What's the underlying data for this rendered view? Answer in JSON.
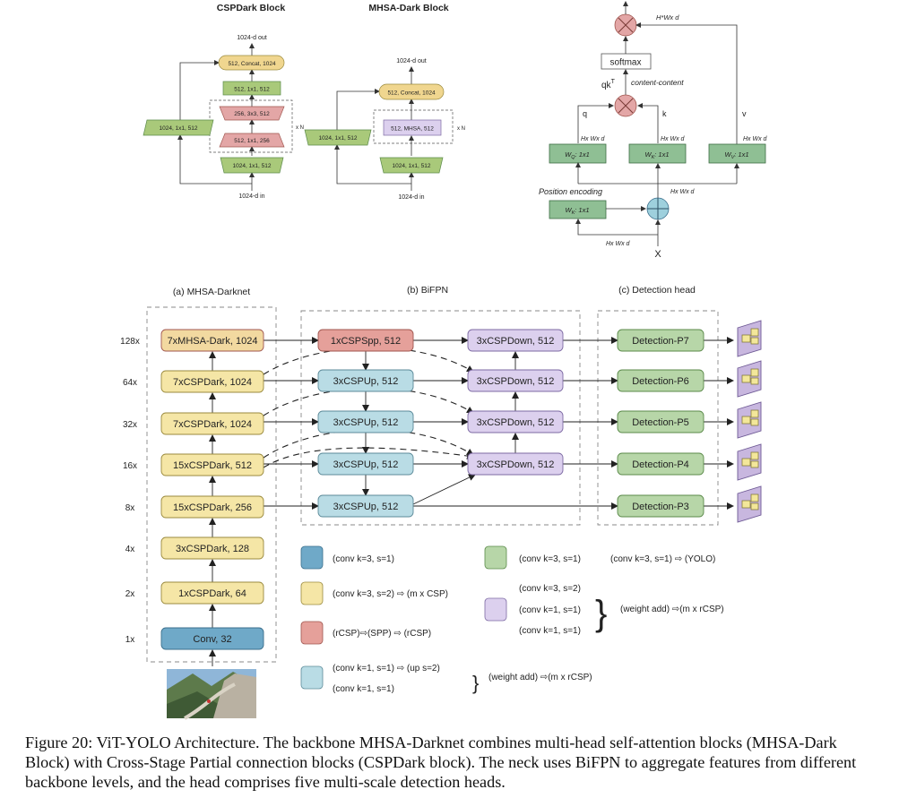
{
  "colors": {
    "yellow": "#f5e6a6",
    "yellow_stroke": "#9a8a3e",
    "blue": "#b9dce5",
    "blue_stroke": "#5c8a99",
    "darkblue": "#6fa9c8",
    "darkblue_stroke": "#3b6f8c",
    "red": "#e5a09a",
    "red_stroke": "#a0564f",
    "purple": "#dcd0ee",
    "purple_stroke": "#7d6aa3",
    "green": "#b7d6a8",
    "green_stroke": "#5b8a4a",
    "dgreen": "#8fbf94",
    "dgreen_stroke": "#3e6e45",
    "lime": "#a9c97a",
    "pink": "#e3a6a6"
  },
  "csp_block": {
    "title": "CSPDark Block",
    "out_label": "1024-d out",
    "in_label": "1024-d in",
    "concat": "512, Concat, 1024",
    "conv_512": "512, 1x1, 512",
    "conv_3x3": "256, 3x3, 512",
    "conv_256": "512, 1x1, 256",
    "conv_in": "1024, 1x1, 512",
    "side": "1024, 1x1, 512",
    "repeat": "x N"
  },
  "mhsa_block": {
    "title": "MHSA-Dark Block",
    "out_label": "1024-d out",
    "in_label": "1024-d in",
    "concat": "512, Concat, 1024",
    "mhsa": "512, MHSA, 512",
    "conv_in": "1024, 1x1, 512",
    "side": "1024, 1x1, 512",
    "repeat": "x N"
  },
  "attention": {
    "top_dim": "H*Wx d",
    "softmax": "softmax",
    "qkt": "qk",
    "qkt_sup": "T",
    "content": "content-content",
    "q": "q",
    "k": "k",
    "v": "v",
    "dim_q": "Hx Wx d",
    "dim_k": "Hx Wx d",
    "dim_v": "Hx Wx d",
    "wq": "W",
    "wq_sub": "Q",
    "wq_tail": ": 1x1",
    "wk": "W",
    "wk_sub": "K",
    "wk_tail": ": 1x1",
    "wv": "W",
    "wv_sub": "V",
    "wv_tail": ": 1x1",
    "pos": "Position encoding",
    "dim_pos": "Hx Wx d",
    "wk2": "W",
    "wk2_sub": "K",
    "wk2_tail": ": 1x1",
    "dim_x": "Hx Wx d",
    "x": "X"
  },
  "sections": {
    "darknet": "(a) MHSA-Darknet",
    "bifpn": "(b) BiFPN",
    "head": "(c) Detection head"
  },
  "scales": [
    "128x",
    "64x",
    "32x",
    "16x",
    "8x",
    "4x",
    "2x",
    "1x"
  ],
  "backbone": [
    "7xMHSA-Dark, 1024",
    "7xCSPDark, 1024",
    "7xCSPDark, 1024",
    "15xCSPDark, 512",
    "15xCSPDark, 256",
    "3xCSPDark, 128",
    "1xCSPDark, 64",
    "Conv, 32"
  ],
  "bifpn_left": [
    "1xCSPSpp, 512",
    "3xCSPUp, 512",
    "3xCSPUp, 512",
    "3xCSPUp, 512",
    "3xCSPUp, 512"
  ],
  "bifpn_right": [
    "3xCSPDown, 512",
    "3xCSPDown, 512",
    "3xCSPDown, 512",
    "3xCSPDown, 512"
  ],
  "heads": [
    "Detection-P7",
    "Detection-P6",
    "Detection-P5",
    "Detection-P4",
    "Detection-P3"
  ],
  "legend": {
    "darkblue": "(conv k=3, s=1)",
    "yellow": "(conv k=3, s=2)",
    "yellow_tail": "(m x CSP)",
    "red_a": "(rCSP)",
    "red_b": "(SPP)",
    "red_c": "(rCSP)",
    "lightblue_1": "(conv k=1, s=1)",
    "lightblue_1_tail": "(up s=2)",
    "lightblue_2": "(conv k=1, s=1)",
    "lightblue_weight": "(weight add)",
    "lightblue_tail": "(m x rCSP)",
    "green": "(conv k=3, s=1)",
    "green_tail_a": "(conv k=3, s=1)",
    "green_tail_b": "(YOLO)",
    "purple_1": "(conv k=3, s=2)",
    "purple_2": "(conv k=1, s=1)",
    "purple_3": "(conv k=1, s=1)",
    "purple_weight": "(weight add)",
    "purple_tail": "(m x rCSP)"
  },
  "caption": "Figure 20: ViT-YOLO Architecture. The backbone MHSA-Darknet combines multi-head self-attention blocks (MHSA-Dark Block) with Cross-Stage Partial connection blocks (CSPDark block). The neck uses BiFPN to aggregate features from different backbone levels, and the head comprises five multi-scale detection heads."
}
